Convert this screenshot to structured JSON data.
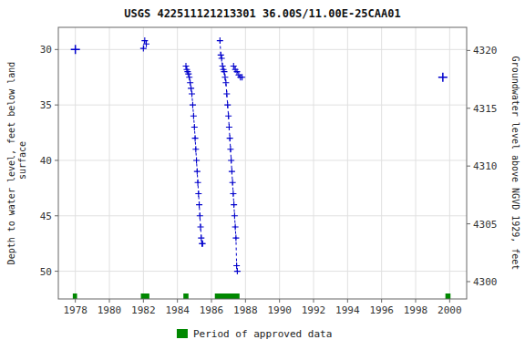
{
  "chart_data": {
    "type": "line",
    "title": "USGS 422511121213301 36.00S/11.00E-25CAA01",
    "y_label": "Depth to water level, feet below land\n surface",
    "y2_label": "Groundwater level above NGVD 1929, feet",
    "xlim": [
      1977,
      2001
    ],
    "xticks": [
      1978,
      1980,
      1982,
      1984,
      1986,
      1988,
      1990,
      1992,
      1994,
      1996,
      1998,
      2000
    ],
    "ylim": [
      52.5,
      28.0
    ],
    "yticks": [
      30,
      35,
      40,
      45,
      50
    ],
    "y2lim": [
      4298.5,
      4322.0
    ],
    "y2ticks": [
      4300,
      4305,
      4310,
      4315,
      4320
    ],
    "grid": true,
    "legend": "bottom",
    "series": [
      {
        "type": "scatter",
        "color": "#0000cc",
        "marker": "plus",
        "x": [
          1978.0,
          1999.6
        ],
        "values": [
          30.0,
          32.5
        ]
      },
      {
        "type": "line",
        "color": "#0000cc",
        "marker": "plus",
        "line_style": "dashed",
        "x": [
          1982.0,
          1982.08,
          1982.17
        ],
        "values": [
          29.9,
          29.2,
          29.5
        ]
      },
      {
        "type": "line",
        "color": "#0000cc",
        "marker": "plus",
        "line_style": "dashed",
        "x": [
          1984.5,
          1984.55,
          1984.6,
          1984.65,
          1984.7,
          1984.75,
          1984.8,
          1984.85,
          1984.9,
          1984.95,
          1985.0,
          1985.04,
          1985.08,
          1985.12,
          1985.16,
          1985.2,
          1985.24,
          1985.28,
          1985.32,
          1985.36,
          1985.4,
          1985.44,
          1985.48
        ],
        "values": [
          31.5,
          31.8,
          32.0,
          32.2,
          32.5,
          33.0,
          33.5,
          34.0,
          35.0,
          36.0,
          37.0,
          38.0,
          39.0,
          40.0,
          41.0,
          42.0,
          43.0,
          44.0,
          45.0,
          46.0,
          47.0,
          47.5,
          47.5
        ]
      },
      {
        "type": "line",
        "color": "#0000cc",
        "marker": "plus",
        "line_style": "dashed",
        "x": [
          1986.5,
          1986.55,
          1986.6,
          1986.65,
          1986.7,
          1986.75,
          1986.8,
          1986.85,
          1986.9,
          1986.95,
          1987.0,
          1987.04,
          1987.08,
          1987.12,
          1987.16,
          1987.2,
          1987.24,
          1987.28,
          1987.32,
          1987.36,
          1987.4,
          1987.44,
          1987.48,
          1987.52
        ],
        "values": [
          29.2,
          30.5,
          30.8,
          31.5,
          31.8,
          32.0,
          32.5,
          33.0,
          34.0,
          35.0,
          36.0,
          37.0,
          38.0,
          39.0,
          40.0,
          41.0,
          42.0,
          43.0,
          44.0,
          45.0,
          46.0,
          47.0,
          49.5,
          50.0
        ]
      },
      {
        "type": "line",
        "color": "#0000cc",
        "marker": "plus",
        "line_style": "dashed",
        "x": [
          1987.3,
          1987.4,
          1987.5,
          1987.6,
          1987.7,
          1987.8
        ],
        "values": [
          31.5,
          31.8,
          32.0,
          32.3,
          32.5,
          32.5
        ]
      },
      {
        "type": "span",
        "name": "Period of approved data",
        "color": "#008800",
        "x_start": [
          1977.85,
          1981.85,
          1984.35,
          1986.2,
          1999.75
        ],
        "x_end": [
          1978.1,
          1982.35,
          1984.65,
          1987.65,
          2000.05
        ]
      }
    ]
  }
}
